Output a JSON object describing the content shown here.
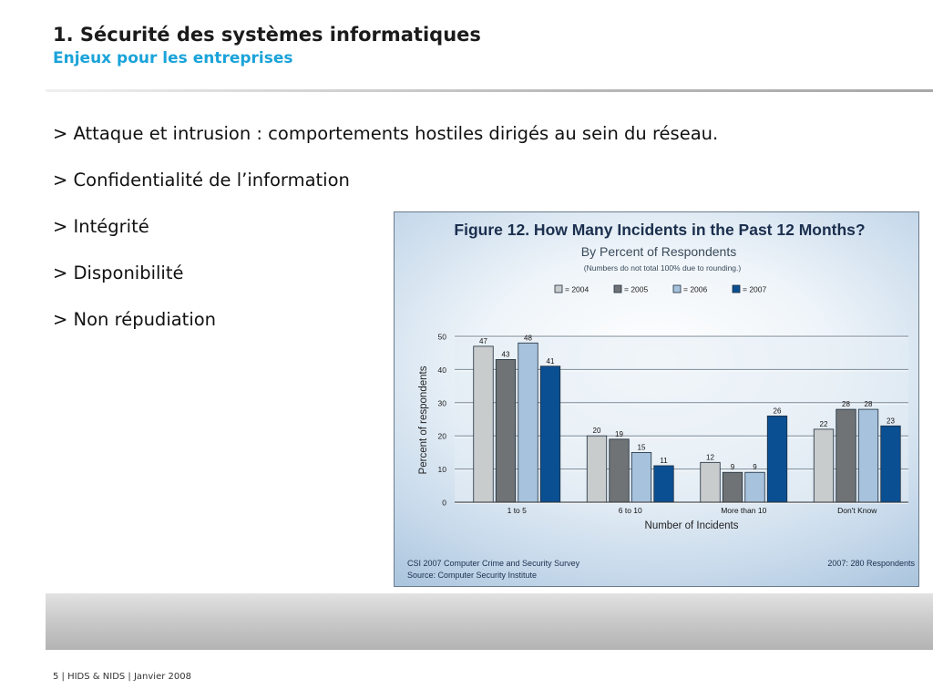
{
  "slide": {
    "title": "1. Sécurité des systèmes informatiques",
    "subtitle": "Enjeux pour les entreprises",
    "bullets": [
      "> Attaque et intrusion : comportements hostiles dirigés au sein du réseau.",
      "> Confidentialité de l’information",
      "> Intégrité",
      "> Disponibilité",
      "> Non répudiation"
    ],
    "footer": "5 | HIDS & NIDS | Janvier 2008"
  },
  "chart_data": {
    "type": "bar",
    "title": "Figure 12. How Many Incidents in the Past 12 Months?",
    "subtitle": "By Percent of Respondents",
    "note": "(Numbers do not total 100% due to rounding.)",
    "xlabel": "Number of Incidents",
    "ylabel": "Percent of respondents",
    "ylim": [
      0,
      50
    ],
    "yticks": [
      0,
      10,
      20,
      30,
      40,
      50
    ],
    "grid": true,
    "legend_position": "top",
    "categories": [
      "1 to 5",
      "6 to 10",
      "More than 10",
      "Don't Know"
    ],
    "series": [
      {
        "name": "= 2004",
        "color": "#c9cccd",
        "values": [
          47,
          20,
          12,
          22
        ]
      },
      {
        "name": "= 2005",
        "color": "#6f7375",
        "values": [
          43,
          19,
          9,
          28
        ]
      },
      {
        "name": "= 2006",
        "color": "#a7c2dc",
        "values": [
          48,
          15,
          9,
          28
        ]
      },
      {
        "name": "= 2007",
        "color": "#0b4f93",
        "values": [
          41,
          11,
          26,
          23
        ]
      }
    ],
    "source_left": [
      "CSI 2007 Computer Crime and Security Survey",
      "Source: Computer Security Institute"
    ],
    "source_right": "2007: 280 Respondents"
  }
}
